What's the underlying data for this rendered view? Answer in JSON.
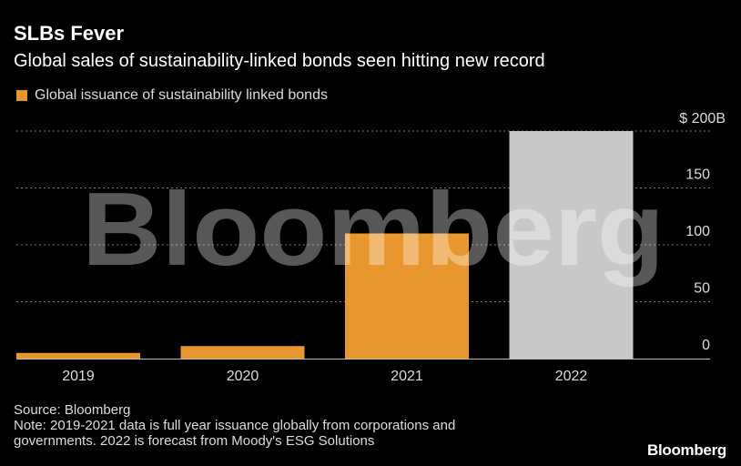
{
  "header": {
    "title": "SLBs Fever",
    "subtitle": "Global sales of sustainability-linked bonds seen hitting new record"
  },
  "legend": {
    "label": "Global issuance of sustainability linked bonds"
  },
  "colors": {
    "actual": "#e8962e",
    "forecast": "#c8c8c8",
    "background": "#000000",
    "gridline": "#777777"
  },
  "chart_data": {
    "type": "bar",
    "categories": [
      "2019",
      "2020",
      "2021",
      "2022"
    ],
    "values": [
      5,
      11,
      110,
      200
    ],
    "forecast_flags": [
      false,
      false,
      false,
      true
    ],
    "title": "SLBs Fever",
    "subtitle": "Global sales of sustainability-linked bonds seen hitting new record",
    "xlabel": "",
    "ylabel": "",
    "ylim": [
      0,
      200
    ],
    "yticks": [
      0,
      50,
      100,
      150,
      200
    ],
    "ytick_labels": [
      "0",
      "50",
      "100",
      "150",
      "$ 200B"
    ],
    "y_axis_side": "right",
    "grid": true,
    "legend_position": "top-left",
    "series": [
      {
        "name": "Global issuance of sustainability linked bonds",
        "values": [
          5,
          11,
          110,
          200
        ]
      }
    ]
  },
  "watermark": "Bloomberg",
  "footer": {
    "source": "Source: Bloomberg",
    "note_line1": "Note: 2019-2021 data is full year issuance globally from corporations and",
    "note_line2": "governments. 2022 is forecast from Moody's ESG Solutions",
    "brand": "Bloomberg"
  }
}
